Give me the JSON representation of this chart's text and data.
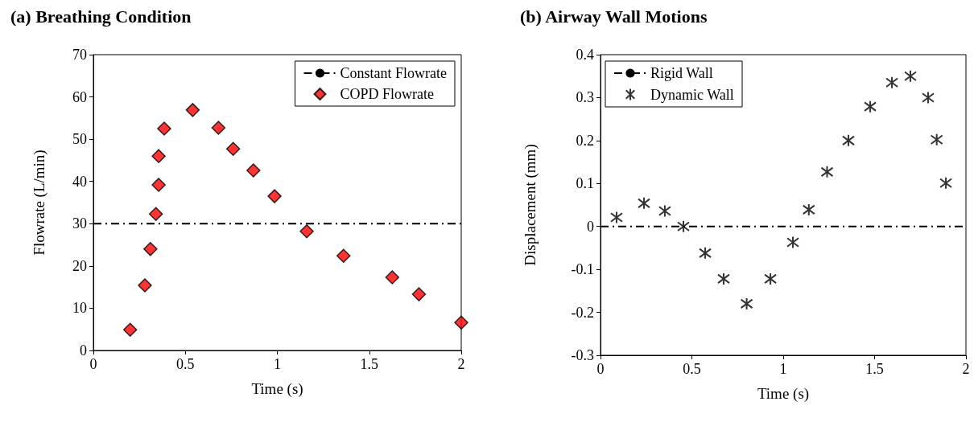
{
  "chart_data": [
    {
      "type": "scatter",
      "title": "(a) Breathing Condition",
      "xlabel": "Time (s)",
      "ylabel": "Flowrate (L/min)",
      "xlim": [
        0,
        2
      ],
      "xticks": [
        0,
        0.5,
        1,
        1.5,
        2
      ],
      "ylim": [
        0,
        70
      ],
      "yticks": [
        0,
        10,
        20,
        30,
        40,
        50,
        60,
        70
      ],
      "grid": false,
      "legend": "top right",
      "series": [
        {
          "name": "Constant Flowrate",
          "type": "line",
          "color": "#000000",
          "line_style": "dashed",
          "marker": "none",
          "x": [
            0,
            2
          ],
          "values": [
            30,
            30
          ]
        },
        {
          "name": "COPD Flowrate",
          "color": "#ff0000",
          "marker": "diamond",
          "x": [
            0.2,
            0.28,
            0.31,
            0.34,
            0.355,
            0.355,
            0.385,
            0.54,
            0.68,
            0.76,
            0.87,
            0.985,
            1.16,
            1.36,
            1.625,
            1.77,
            2.0
          ],
          "values": [
            4.9,
            15.4,
            24,
            32.3,
            39.2,
            46,
            52.5,
            56.9,
            52.7,
            47.7,
            42.6,
            36.5,
            28.2,
            22.4,
            17.3,
            13.3,
            6.6
          ]
        }
      ]
    },
    {
      "type": "scatter",
      "title": "(b) Airway Wall Motions",
      "xlabel": "Time (s)",
      "ylabel": "Displacement (mm)",
      "xlim": [
        0,
        2
      ],
      "xticks": [
        0,
        0.5,
        1,
        1.5,
        2
      ],
      "ylim": [
        -0.3,
        0.4
      ],
      "yticks": [
        -0.3,
        -0.2,
        -0.1,
        0,
        0.1,
        0.2,
        0.3,
        0.4
      ],
      "grid": false,
      "legend": "top left",
      "series": [
        {
          "name": "Rigid Wall",
          "type": "line",
          "color": "#000000",
          "line_style": "dashed",
          "marker": "none",
          "x": [
            0,
            2
          ],
          "values": [
            0,
            0
          ]
        },
        {
          "name": "Dynamic Wall",
          "color": "#000000",
          "marker": "cross",
          "x": [
            0.088,
            0.238,
            0.352,
            0.454,
            0.573,
            0.674,
            0.8,
            0.93,
            1.053,
            1.14,
            1.24,
            1.357,
            1.476,
            1.595,
            1.696,
            1.793,
            1.84,
            1.89
          ],
          "values": [
            0.021,
            0.054,
            0.036,
            0,
            -0.062,
            -0.122,
            -0.18,
            -0.122,
            -0.037,
            0.039,
            0.127,
            0.2,
            0.279,
            0.335,
            0.35,
            0.3,
            0.202,
            0.101
          ]
        }
      ]
    }
  ]
}
